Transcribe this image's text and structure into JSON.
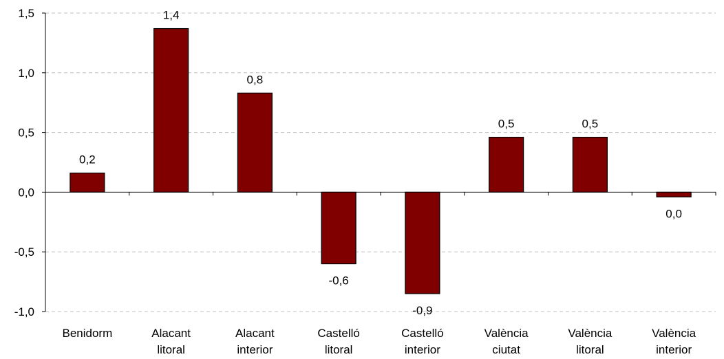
{
  "chart_data": {
    "type": "bar",
    "categories": [
      [
        "Benidorm"
      ],
      [
        "Alacant",
        "litoral"
      ],
      [
        "Alacant",
        "interior"
      ],
      [
        "Castelló",
        "litoral"
      ],
      [
        "Castelló",
        "interior"
      ],
      [
        "València",
        "ciutat"
      ],
      [
        "València",
        "litoral"
      ],
      [
        "València",
        "interior"
      ]
    ],
    "values": [
      0.16,
      1.37,
      0.83,
      -0.6,
      -0.85,
      0.46,
      0.46,
      -0.04
    ],
    "data_labels": [
      "0,2",
      "1,4",
      "0,8",
      "-0,6",
      "-0,9",
      "0,5",
      "0,5",
      "0,0"
    ],
    "yticks": [
      1.5,
      1.0,
      0.5,
      0.0,
      -0.5,
      -1.0
    ],
    "ytick_labels": [
      "1,5",
      "1,0",
      "0,5",
      "0,0",
      "-0,5",
      "-1,0"
    ],
    "ylim": [
      -1.0,
      1.5
    ],
    "grid": true,
    "legend": "none",
    "title": "",
    "xlabel": "",
    "ylabel": "",
    "colors": {
      "bar": "#800000",
      "bar_stroke": "#000000",
      "grid": "#bfbfbf",
      "axis": "#000000"
    }
  }
}
